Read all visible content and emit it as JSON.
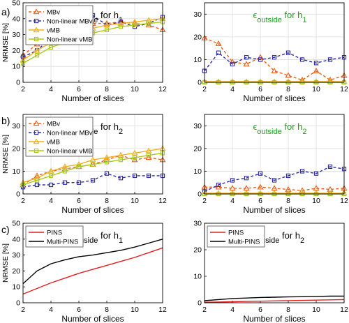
{
  "colors": {
    "mbv": "#E8601C",
    "nonlinear_mbv": "#2B2B9E",
    "vmb": "#F0B020",
    "nonlinear_vmb": "#A8C818",
    "pins": "#E0201E",
    "multi_pins": "#000000",
    "green_title": "#1E9E1E"
  },
  "panel_labels": [
    "a)",
    "b)",
    "c)"
  ],
  "chart_data": [
    {
      "type": "line",
      "panel": "a",
      "title": "εinside for h1",
      "title_parts": [
        "ϵ",
        "inside",
        " for h",
        "1"
      ],
      "title_color": "black",
      "xlabel": "Number of slices",
      "ylabel": "NRMSE [%]",
      "xlim": [
        2,
        12
      ],
      "ylim": [
        0,
        50
      ],
      "xticks": [
        2,
        4,
        6,
        8,
        10,
        12
      ],
      "yticks": [
        0,
        10,
        20,
        30,
        40,
        50
      ],
      "grid": true,
      "legend": "top-left",
      "x": [
        2,
        3,
        4,
        5,
        6,
        7,
        8,
        9,
        10,
        11,
        12
      ],
      "series": [
        {
          "name": "MBv",
          "color": "#E8601C",
          "dash": true,
          "marker": "triangle",
          "values": [
            17,
            24,
            29,
            32,
            34,
            37,
            37,
            38,
            37,
            36,
            33
          ]
        },
        {
          "name": "Non-linear MBv",
          "color": "#2B2B9E",
          "dash": true,
          "marker": "square",
          "values": [
            16,
            20,
            28,
            32,
            33,
            42,
            36,
            38,
            35,
            37,
            41
          ]
        },
        {
          "name": "vMB",
          "color": "#F0B020",
          "dash": false,
          "marker": "triangle",
          "values": [
            14,
            20,
            25,
            29,
            31,
            34,
            36,
            37,
            38,
            39,
            40
          ]
        },
        {
          "name": "Non-linear vMB",
          "color": "#A8C818",
          "dash": false,
          "marker": "square",
          "values": [
            12,
            17,
            22,
            25,
            28,
            31,
            33,
            35,
            36,
            37,
            38
          ]
        }
      ]
    },
    {
      "type": "line",
      "panel": "a",
      "title": "εoutside for h1",
      "title_parts": [
        "ϵ",
        "outside",
        " for h",
        "1"
      ],
      "title_color": "green",
      "xlabel": "Number of slices",
      "ylabel": "",
      "xlim": [
        2,
        12
      ],
      "ylim": [
        0,
        35
      ],
      "xticks": [
        2,
        4,
        6,
        8,
        10,
        12
      ],
      "yticks": [
        0,
        10,
        20,
        30
      ],
      "grid": true,
      "legend": "none",
      "x": [
        2,
        3,
        4,
        5,
        6,
        7,
        8,
        9,
        10,
        11,
        12
      ],
      "series": [
        {
          "name": "MBv",
          "color": "#E8601C",
          "dash": true,
          "marker": "triangle",
          "values": [
            19.5,
            17,
            9,
            8,
            11,
            5,
            3,
            1,
            5,
            1,
            3
          ]
        },
        {
          "name": "Non-linear MBv",
          "color": "#2B2B9E",
          "dash": true,
          "marker": "square",
          "values": [
            5,
            13,
            8,
            11,
            10,
            11,
            13,
            10,
            8.5,
            10,
            11
          ]
        },
        {
          "name": "vMB",
          "color": "#F0B020",
          "dash": false,
          "marker": "triangle",
          "values": [
            0.3,
            0.3,
            0.3,
            0.3,
            0.3,
            0.3,
            0.3,
            0.3,
            0.3,
            0.3,
            0.3
          ]
        },
        {
          "name": "Non-linear vMB",
          "color": "#A8C818",
          "dash": false,
          "marker": "square",
          "values": [
            0,
            0,
            0,
            0,
            0,
            0,
            0,
            0,
            0,
            0,
            0
          ]
        }
      ]
    },
    {
      "type": "line",
      "panel": "b",
      "title": "εinside for h2",
      "title_parts": [
        "ϵ",
        "inside",
        " for h",
        "2"
      ],
      "title_color": "black",
      "xlabel": "Number of slices",
      "ylabel": "NRMSE [%]",
      "xlim": [
        2,
        12
      ],
      "ylim": [
        0,
        35
      ],
      "xticks": [
        2,
        4,
        6,
        8,
        10,
        12
      ],
      "yticks": [
        0,
        10,
        20,
        30
      ],
      "grid": true,
      "legend": "top-left",
      "x": [
        2,
        3,
        4,
        5,
        6,
        7,
        8,
        9,
        10,
        11,
        12
      ],
      "series": [
        {
          "name": "MBv",
          "color": "#E8601C",
          "dash": true,
          "marker": "triangle",
          "values": [
            4,
            8,
            10,
            11,
            12,
            13,
            15,
            17,
            15,
            16,
            15
          ]
        },
        {
          "name": "Non-linear MBv",
          "color": "#2B2B9E",
          "dash": true,
          "marker": "square",
          "values": [
            3,
            4,
            4,
            5,
            5,
            6,
            9,
            7,
            8,
            8,
            8
          ]
        },
        {
          "name": "vMB",
          "color": "#F0B020",
          "dash": false,
          "marker": "triangle",
          "values": [
            5,
            7,
            10,
            12,
            13,
            15,
            16,
            17,
            18,
            19,
            20
          ]
        },
        {
          "name": "Non-linear vMB",
          "color": "#A8C818",
          "dash": false,
          "marker": "square",
          "values": [
            4,
            6,
            8,
            10,
            12,
            13,
            14,
            15,
            16,
            17,
            18
          ]
        }
      ]
    },
    {
      "type": "line",
      "panel": "b",
      "title": "εoutside for h2",
      "title_parts": [
        "ϵ",
        "outside",
        " for h",
        "2"
      ],
      "title_color": "green",
      "xlabel": "Number of slices",
      "ylabel": "",
      "xlim": [
        2,
        12
      ],
      "ylim": [
        0,
        35
      ],
      "xticks": [
        2,
        4,
        6,
        8,
        10,
        12
      ],
      "yticks": [
        0,
        10,
        20,
        30
      ],
      "grid": true,
      "legend": "none",
      "x": [
        2,
        3,
        4,
        5,
        6,
        7,
        8,
        9,
        10,
        11,
        12
      ],
      "series": [
        {
          "name": "MBv",
          "color": "#E8601C",
          "dash": true,
          "marker": "triangle",
          "values": [
            3,
            3,
            2.5,
            2.5,
            3,
            2.5,
            2,
            1.5,
            2.5,
            2,
            2.5
          ]
        },
        {
          "name": "Non-linear MBv",
          "color": "#2B2B9E",
          "dash": true,
          "marker": "square",
          "values": [
            1,
            4,
            6,
            7,
            9,
            6,
            8,
            10,
            9,
            12,
            11
          ]
        },
        {
          "name": "vMB",
          "color": "#F0B020",
          "dash": false,
          "marker": "triangle",
          "values": [
            0.3,
            0.3,
            0.3,
            0.3,
            0.3,
            0.3,
            0.3,
            0.3,
            0.3,
            0.3,
            0.3
          ]
        },
        {
          "name": "Non-linear vMB",
          "color": "#A8C818",
          "dash": false,
          "marker": "square",
          "values": [
            0,
            0,
            0,
            0,
            0,
            0,
            0,
            0,
            0,
            0,
            0
          ]
        }
      ]
    },
    {
      "type": "line",
      "panel": "c",
      "title": "εinside for h1",
      "title_parts": [
        "ϵ",
        "inside",
        " for h",
        "1"
      ],
      "title_color": "black",
      "xlabel": "Number of slices",
      "ylabel": "NRMSE [%]",
      "xlim": [
        2,
        12
      ],
      "ylim": [
        0,
        50
      ],
      "xticks": [
        2,
        4,
        6,
        8,
        10,
        12
      ],
      "yticks": [
        0,
        10,
        20,
        30,
        40,
        50
      ],
      "grid": false,
      "legend": "top-left",
      "x": [
        2,
        3,
        4,
        5,
        6,
        7,
        8,
        9,
        10,
        11,
        12
      ],
      "series": [
        {
          "name": "PINS",
          "color": "#E0201E",
          "dash": false,
          "marker": "none",
          "values": [
            5.5,
            9,
            12.5,
            15.5,
            18.5,
            21,
            23.5,
            26,
            28.5,
            31.5,
            34.5
          ]
        },
        {
          "name": "Multi-PINS",
          "color": "#000000",
          "dash": false,
          "marker": "none",
          "values": [
            12,
            20,
            24.5,
            27,
            29,
            30,
            31.5,
            33,
            35,
            37.5,
            40
          ]
        }
      ]
    },
    {
      "type": "line",
      "panel": "c",
      "title": "εinside for h2",
      "title_parts": [
        "ϵ",
        "inside",
        " for h",
        "2"
      ],
      "title_color": "black",
      "xlabel": "Number of slices",
      "ylabel": "",
      "xlim": [
        2,
        12
      ],
      "ylim": [
        0,
        30
      ],
      "xticks": [
        2,
        4,
        6,
        8,
        10,
        12
      ],
      "yticks": [
        0,
        10,
        20,
        30
      ],
      "grid": false,
      "legend": "top-left",
      "x": [
        2,
        3,
        4,
        5,
        6,
        7,
        8,
        9,
        10,
        11,
        12
      ],
      "series": [
        {
          "name": "PINS",
          "color": "#E0201E",
          "dash": false,
          "marker": "none",
          "values": [
            0.2,
            0.3,
            0.4,
            0.5,
            0.6,
            0.7,
            0.8,
            0.9,
            1.0,
            1.1,
            1.2
          ]
        },
        {
          "name": "Multi-PINS",
          "color": "#000000",
          "dash": false,
          "marker": "none",
          "values": [
            0.8,
            1.2,
            1.6,
            1.8,
            2.0,
            2.1,
            2.2,
            2.3,
            2.4,
            2.5,
            2.5
          ]
        }
      ]
    }
  ]
}
